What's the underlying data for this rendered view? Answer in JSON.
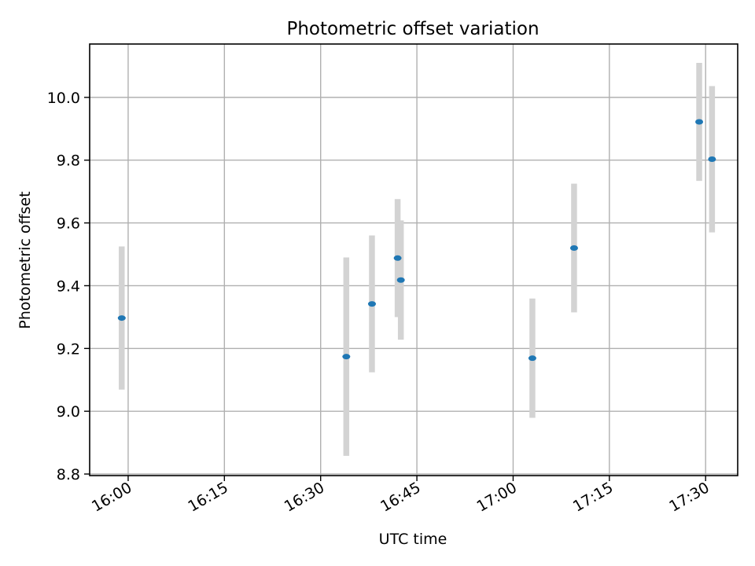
{
  "chart_data": {
    "type": "scatter",
    "title": "Photometric offset variation",
    "xlabel": "UTC time",
    "ylabel": "Photometric offset",
    "x_axis": {
      "kind": "time",
      "range": [
        "15:54",
        "17:35"
      ],
      "ticks": [
        "16:00",
        "16:15",
        "16:30",
        "16:45",
        "17:00",
        "17:15",
        "17:30"
      ]
    },
    "y_axis": {
      "range": [
        8.795,
        10.17
      ],
      "ticks": [
        "8.8",
        "9.0",
        "9.2",
        "9.4",
        "9.6",
        "9.8",
        "10.0"
      ]
    },
    "grid": true,
    "legend": "none",
    "colors": {
      "marker": "#1f77b4",
      "errorbar": "#d3d3d3"
    },
    "series": [
      {
        "points": [
          {
            "time": "15:59",
            "y": 9.297,
            "err": 0.228
          },
          {
            "time": "16:34",
            "y": 9.174,
            "err": 0.316
          },
          {
            "time": "16:38",
            "y": 9.342,
            "err": 0.218
          },
          {
            "time": "16:42",
            "y": 9.488,
            "err": 0.188
          },
          {
            "time": "16:42.5",
            "y": 9.418,
            "err": 0.19
          },
          {
            "time": "17:03",
            "y": 9.169,
            "err": 0.19
          },
          {
            "time": "17:09.5",
            "y": 9.52,
            "err": 0.205
          },
          {
            "time": "17:29",
            "y": 9.922,
            "err": 0.188
          },
          {
            "time": "17:31",
            "y": 9.803,
            "err": 0.233
          }
        ]
      }
    ]
  }
}
